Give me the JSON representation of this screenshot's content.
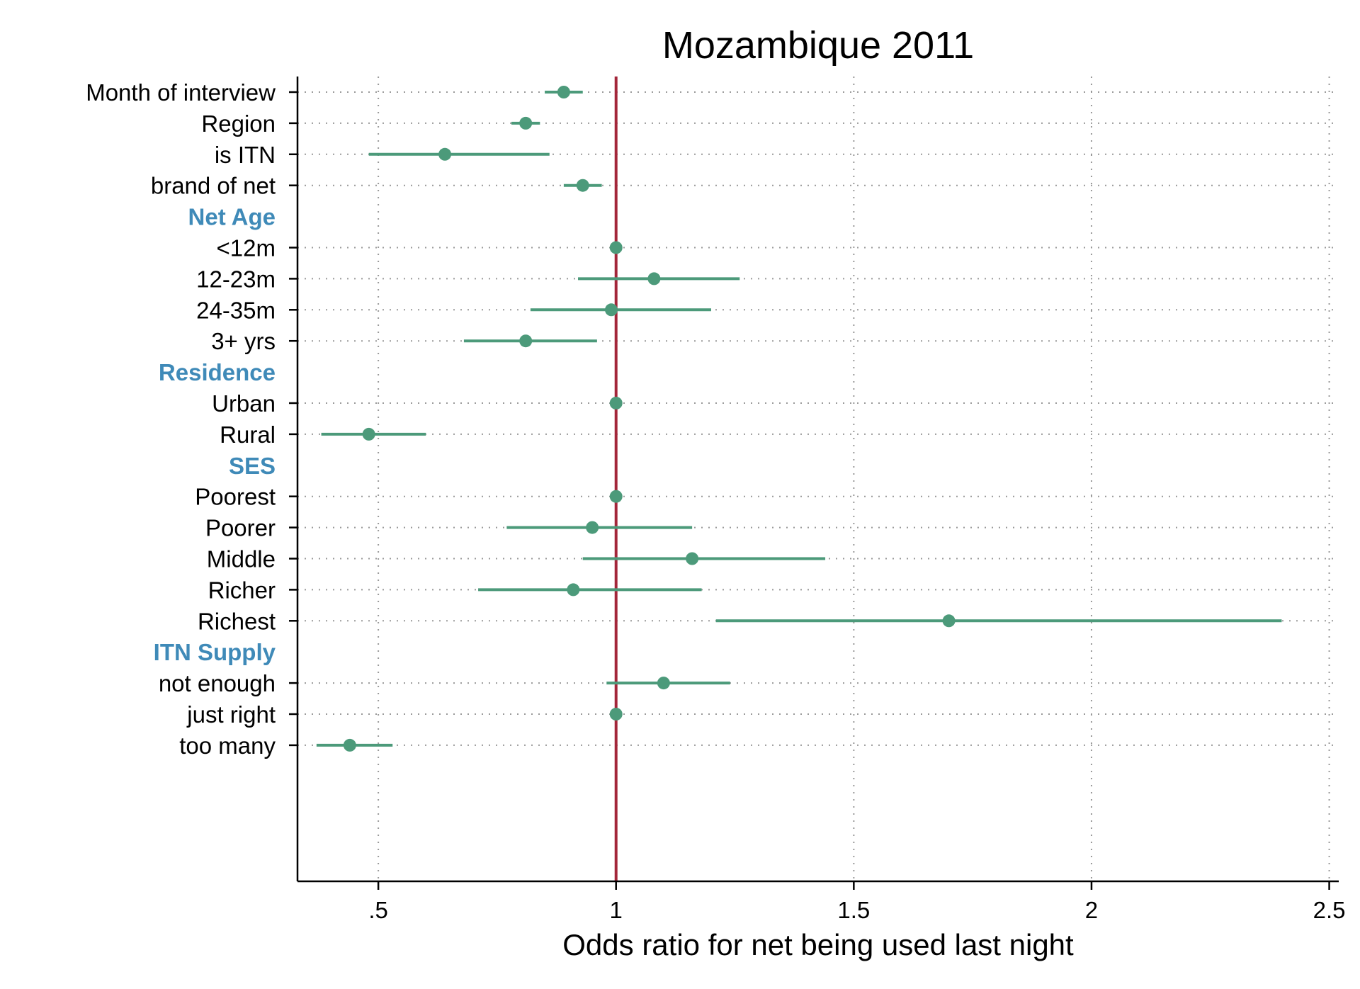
{
  "chart_data": {
    "type": "forest",
    "title": "Mozambique 2011",
    "xlabel": "Odds ratio for net being used last night",
    "xlim": [
      0.33,
      2.52
    ],
    "xticks": [
      0.5,
      1,
      1.5,
      2,
      2.5
    ],
    "xtick_labels": [
      ".5",
      "1",
      "1.5",
      "2",
      "2.5"
    ],
    "reference_line": 1,
    "colors": {
      "point": "#4c9a7a",
      "reference": "#a3263a",
      "group_label": "#3f8ab8",
      "grid": "#999999",
      "axis": "#000000"
    },
    "rows": [
      {
        "label": "Month of interview",
        "estimate": 0.89,
        "ci_low": 0.85,
        "ci_high": 0.93
      },
      {
        "label": "Region",
        "estimate": 0.81,
        "ci_low": 0.78,
        "ci_high": 0.84
      },
      {
        "label": "is ITN",
        "estimate": 0.64,
        "ci_low": 0.48,
        "ci_high": 0.86
      },
      {
        "label": "brand of net",
        "estimate": 0.93,
        "ci_low": 0.89,
        "ci_high": 0.97
      },
      {
        "group": "Net Age"
      },
      {
        "label": "<12m",
        "estimate": 1.0,
        "ci_low": 1.0,
        "ci_high": 1.0
      },
      {
        "label": "12-23m",
        "estimate": 1.08,
        "ci_low": 0.92,
        "ci_high": 1.26
      },
      {
        "label": "24-35m",
        "estimate": 0.99,
        "ci_low": 0.82,
        "ci_high": 1.2
      },
      {
        "label": "3+ yrs",
        "estimate": 0.81,
        "ci_low": 0.68,
        "ci_high": 0.96
      },
      {
        "group": "Residence"
      },
      {
        "label": "Urban",
        "estimate": 1.0,
        "ci_low": 1.0,
        "ci_high": 1.0
      },
      {
        "label": "Rural",
        "estimate": 0.48,
        "ci_low": 0.38,
        "ci_high": 0.6
      },
      {
        "group": "SES"
      },
      {
        "label": "Poorest",
        "estimate": 1.0,
        "ci_low": 1.0,
        "ci_high": 1.0
      },
      {
        "label": "Poorer",
        "estimate": 0.95,
        "ci_low": 0.77,
        "ci_high": 1.16
      },
      {
        "label": "Middle",
        "estimate": 1.16,
        "ci_low": 0.93,
        "ci_high": 1.44
      },
      {
        "label": "Richer",
        "estimate": 0.91,
        "ci_low": 0.71,
        "ci_high": 1.18
      },
      {
        "label": "Richest",
        "estimate": 1.7,
        "ci_low": 1.21,
        "ci_high": 2.4
      },
      {
        "group": "ITN Supply"
      },
      {
        "label": "not enough",
        "estimate": 1.1,
        "ci_low": 0.98,
        "ci_high": 1.24
      },
      {
        "label": "just right",
        "estimate": 1.0,
        "ci_low": 1.0,
        "ci_high": 1.0
      },
      {
        "label": "too many",
        "estimate": 0.44,
        "ci_low": 0.37,
        "ci_high": 0.53
      }
    ]
  }
}
